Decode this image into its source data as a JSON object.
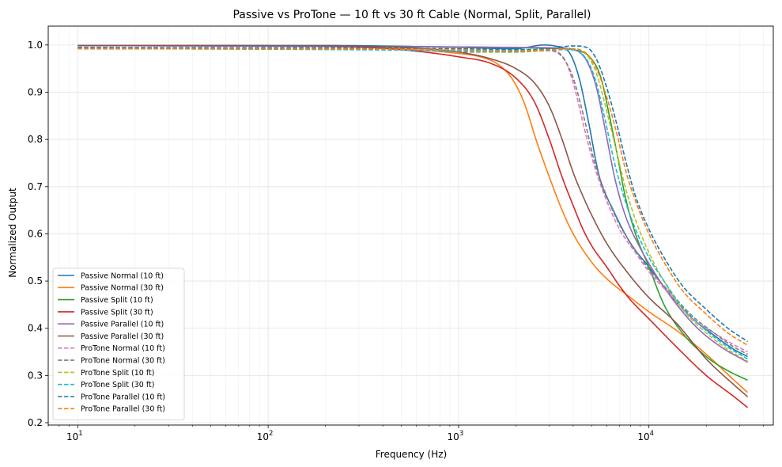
{
  "chart_data": {
    "type": "line",
    "title": "Passive vs ProTone — 10 ft vs 30 ft Cable (Normal, Split, Parallel)",
    "xlabel": "Frequency (Hz)",
    "ylabel": "Normalized Output",
    "xscale": "log",
    "xlim": [
      7,
      45000
    ],
    "ylim": [
      0.195,
      1.04
    ],
    "x_ticks": [
      {
        "base": "10",
        "exp": "1",
        "value": 10
      },
      {
        "base": "10",
        "exp": "2",
        "value": 100
      },
      {
        "base": "10",
        "exp": "3",
        "value": 1000
      },
      {
        "base": "10",
        "exp": "4",
        "value": 10000
      }
    ],
    "y_ticks": [
      "0.2",
      "0.3",
      "0.4",
      "0.5",
      "0.6",
      "0.7",
      "0.8",
      "0.9",
      "1.0"
    ],
    "grid": true,
    "legend_position": "lower-left",
    "series": [
      {
        "name": "Passive Normal (10 ft)",
        "color": "#1f77b4",
        "dash": "solid",
        "points": [
          [
            10,
            0.999
          ],
          [
            200,
            0.999
          ],
          [
            1000,
            0.995
          ],
          [
            2000,
            0.992
          ],
          [
            2800,
            1.0
          ],
          [
            3200,
            0.998
          ],
          [
            3800,
            0.985
          ],
          [
            4300,
            0.93
          ],
          [
            4800,
            0.84
          ],
          [
            5500,
            0.72
          ],
          [
            6500,
            0.65
          ],
          [
            8000,
            0.58
          ],
          [
            10000,
            0.53
          ],
          [
            13000,
            0.47
          ],
          [
            17000,
            0.42
          ],
          [
            22000,
            0.385
          ],
          [
            28000,
            0.355
          ],
          [
            33000,
            0.34
          ]
        ]
      },
      {
        "name": "Passive Normal (30 ft)",
        "color": "#ff7f0e",
        "dash": "solid",
        "points": [
          [
            10,
            0.999
          ],
          [
            100,
            0.998
          ],
          [
            300,
            0.995
          ],
          [
            700,
            0.988
          ],
          [
            1000,
            0.982
          ],
          [
            1300,
            0.975
          ],
          [
            1600,
            0.96
          ],
          [
            1900,
            0.93
          ],
          [
            2200,
            0.88
          ],
          [
            2600,
            0.79
          ],
          [
            3000,
            0.72
          ],
          [
            3500,
            0.65
          ],
          [
            4000,
            0.6
          ],
          [
            5000,
            0.54
          ],
          [
            6000,
            0.505
          ],
          [
            8000,
            0.465
          ],
          [
            10000,
            0.435
          ],
          [
            14000,
            0.395
          ],
          [
            20000,
            0.345
          ],
          [
            28000,
            0.29
          ],
          [
            33000,
            0.264
          ]
        ]
      },
      {
        "name": "Passive Split (10 ft)",
        "color": "#2ca02c",
        "dash": "solid",
        "points": [
          [
            10,
            0.999
          ],
          [
            1000,
            0.996
          ],
          [
            3000,
            0.993
          ],
          [
            4000,
            0.99
          ],
          [
            5000,
            0.97
          ],
          [
            5600,
            0.93
          ],
          [
            6200,
            0.85
          ],
          [
            6800,
            0.77
          ],
          [
            7500,
            0.68
          ],
          [
            8500,
            0.6
          ],
          [
            10000,
            0.53
          ],
          [
            12000,
            0.45
          ],
          [
            15000,
            0.39
          ],
          [
            20000,
            0.34
          ],
          [
            26000,
            0.31
          ],
          [
            33000,
            0.29
          ]
        ]
      },
      {
        "name": "Passive Split (30 ft)",
        "color": "#d62728",
        "dash": "solid",
        "points": [
          [
            10,
            0.999
          ],
          [
            200,
            0.998
          ],
          [
            500,
            0.99
          ],
          [
            1000,
            0.975
          ],
          [
            1500,
            0.96
          ],
          [
            2000,
            0.93
          ],
          [
            2500,
            0.88
          ],
          [
            3000,
            0.8
          ],
          [
            3500,
            0.72
          ],
          [
            4000,
            0.66
          ],
          [
            4500,
            0.61
          ],
          [
            5000,
            0.575
          ],
          [
            6000,
            0.53
          ],
          [
            7000,
            0.49
          ],
          [
            8000,
            0.46
          ],
          [
            10000,
            0.42
          ],
          [
            14000,
            0.36
          ],
          [
            20000,
            0.3
          ],
          [
            28000,
            0.255
          ],
          [
            33000,
            0.232
          ]
        ]
      },
      {
        "name": "Passive Parallel (10 ft)",
        "color": "#9467bd",
        "dash": "solid",
        "points": [
          [
            10,
            0.999
          ],
          [
            2000,
            0.995
          ],
          [
            3500,
            0.993
          ],
          [
            4300,
            0.985
          ],
          [
            4800,
            0.96
          ],
          [
            5300,
            0.91
          ],
          [
            5900,
            0.82
          ],
          [
            6600,
            0.72
          ],
          [
            7500,
            0.64
          ],
          [
            9000,
            0.57
          ],
          [
            11000,
            0.51
          ],
          [
            14000,
            0.45
          ],
          [
            18000,
            0.4
          ],
          [
            24000,
            0.36
          ],
          [
            33000,
            0.328
          ]
        ]
      },
      {
        "name": "Passive Parallel (30 ft)",
        "color": "#8c564b",
        "dash": "solid",
        "points": [
          [
            10,
            0.999
          ],
          [
            200,
            0.998
          ],
          [
            500,
            0.995
          ],
          [
            1000,
            0.985
          ],
          [
            1500,
            0.97
          ],
          [
            2000,
            0.95
          ],
          [
            2500,
            0.92
          ],
          [
            3000,
            0.87
          ],
          [
            3500,
            0.8
          ],
          [
            4000,
            0.73
          ],
          [
            4500,
            0.68
          ],
          [
            5000,
            0.64
          ],
          [
            6000,
            0.58
          ],
          [
            8000,
            0.51
          ],
          [
            10000,
            0.465
          ],
          [
            14000,
            0.41
          ],
          [
            20000,
            0.335
          ],
          [
            28000,
            0.28
          ],
          [
            33000,
            0.255
          ]
        ]
      },
      {
        "name": "ProTone Normal (10 ft)",
        "color": "#e377c2",
        "dash": "dashed",
        "points": [
          [
            10,
            0.995
          ],
          [
            1000,
            0.99
          ],
          [
            2000,
            0.988
          ],
          [
            3000,
            0.99
          ],
          [
            3600,
            0.97
          ],
          [
            4000,
            0.92
          ],
          [
            4600,
            0.82
          ],
          [
            5200,
            0.74
          ],
          [
            6000,
            0.67
          ],
          [
            7000,
            0.61
          ],
          [
            8500,
            0.56
          ],
          [
            10000,
            0.52
          ],
          [
            13000,
            0.47
          ],
          [
            17000,
            0.42
          ],
          [
            22000,
            0.39
          ],
          [
            28000,
            0.365
          ],
          [
            33000,
            0.35
          ]
        ]
      },
      {
        "name": "ProTone Normal (30 ft)",
        "color": "#7f7f7f",
        "dash": "dashed",
        "points": [
          [
            10,
            0.992
          ],
          [
            500,
            0.99
          ],
          [
            1200,
            0.985
          ],
          [
            2000,
            0.985
          ],
          [
            3000,
            0.988
          ],
          [
            3500,
            0.975
          ],
          [
            4000,
            0.93
          ],
          [
            4600,
            0.84
          ],
          [
            5200,
            0.75
          ],
          [
            6000,
            0.68
          ],
          [
            7000,
            0.62
          ],
          [
            8500,
            0.565
          ],
          [
            10000,
            0.525
          ],
          [
            13000,
            0.475
          ],
          [
            17000,
            0.425
          ],
          [
            22000,
            0.39
          ],
          [
            28000,
            0.36
          ],
          [
            33000,
            0.345
          ]
        ]
      },
      {
        "name": "ProTone Split (10 ft)",
        "color": "#bcbd22",
        "dash": "dashed",
        "points": [
          [
            10,
            0.993
          ],
          [
            1000,
            0.988
          ],
          [
            1500,
            0.985
          ],
          [
            2000,
            0.985
          ],
          [
            3000,
            0.99
          ],
          [
            4000,
            0.992
          ],
          [
            4700,
            0.98
          ],
          [
            5300,
            0.94
          ],
          [
            6000,
            0.86
          ],
          [
            6800,
            0.77
          ],
          [
            7500,
            0.7
          ],
          [
            8500,
            0.63
          ],
          [
            10000,
            0.56
          ],
          [
            12000,
            0.5
          ],
          [
            15000,
            0.44
          ],
          [
            20000,
            0.39
          ],
          [
            26000,
            0.355
          ],
          [
            33000,
            0.33
          ]
        ]
      },
      {
        "name": "ProTone Split (30 ft)",
        "color": "#17becf",
        "dash": "dashed",
        "points": [
          [
            10,
            0.993
          ],
          [
            1000,
            0.988
          ],
          [
            2000,
            0.986
          ],
          [
            3000,
            0.99
          ],
          [
            3800,
            0.99
          ],
          [
            4600,
            0.975
          ],
          [
            5200,
            0.93
          ],
          [
            5900,
            0.84
          ],
          [
            6600,
            0.75
          ],
          [
            7500,
            0.67
          ],
          [
            8500,
            0.61
          ],
          [
            10000,
            0.55
          ],
          [
            12000,
            0.5
          ],
          [
            15000,
            0.445
          ],
          [
            20000,
            0.395
          ],
          [
            26000,
            0.36
          ],
          [
            33000,
            0.335
          ]
        ]
      },
      {
        "name": "ProTone Parallel (10 ft)",
        "color": "#1f77b4",
        "dash": "dashed",
        "points": [
          [
            10,
            0.995
          ],
          [
            1000,
            0.992
          ],
          [
            2000,
            0.99
          ],
          [
            3000,
            0.992
          ],
          [
            4000,
            0.998
          ],
          [
            4700,
            0.995
          ],
          [
            5300,
            0.97
          ],
          [
            6000,
            0.91
          ],
          [
            6800,
            0.83
          ],
          [
            7600,
            0.75
          ],
          [
            8500,
            0.68
          ],
          [
            10000,
            0.61
          ],
          [
            12000,
            0.55
          ],
          [
            15000,
            0.49
          ],
          [
            20000,
            0.44
          ],
          [
            26000,
            0.4
          ],
          [
            33000,
            0.372
          ]
        ]
      },
      {
        "name": "ProTone Parallel (30 ft)",
        "color": "#ff7f0e",
        "dash": "dashed",
        "points": [
          [
            10,
            0.993
          ],
          [
            1000,
            0.99
          ],
          [
            2000,
            0.988
          ],
          [
            3000,
            0.99
          ],
          [
            3800,
            0.992
          ],
          [
            4600,
            0.985
          ],
          [
            5300,
            0.95
          ],
          [
            6000,
            0.89
          ],
          [
            6800,
            0.81
          ],
          [
            7600,
            0.73
          ],
          [
            8500,
            0.67
          ],
          [
            10000,
            0.6
          ],
          [
            12000,
            0.54
          ],
          [
            15000,
            0.48
          ],
          [
            20000,
            0.43
          ],
          [
            26000,
            0.39
          ],
          [
            33000,
            0.364
          ]
        ]
      }
    ]
  }
}
